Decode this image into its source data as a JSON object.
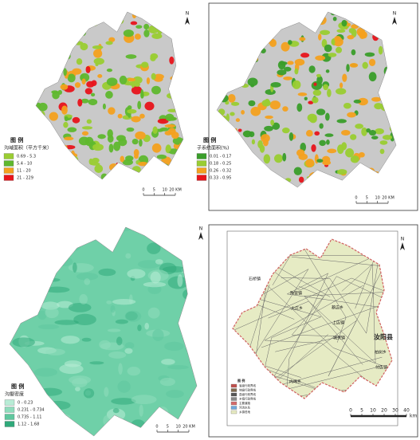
{
  "panels": [
    {
      "north": "N",
      "legend_title": "图  例",
      "legend_subtitle": "沟域面积（平方千米）",
      "legend_items": [
        {
          "label": "0.69 - 5.3",
          "color": "#9acd32"
        },
        {
          "label": "5.4 - 10",
          "color": "#5fb82e"
        },
        {
          "label": "11 - 20",
          "color": "#f4a11f"
        },
        {
          "label": "21 - 229",
          "color": "#e8141b"
        }
      ],
      "scale_labels": [
        "0",
        "5",
        "10",
        "20 KM"
      ]
    },
    {
      "north": "N",
      "legend_title": "图  例",
      "legend_subtitle": "子系统面积(%)",
      "legend_items": [
        {
          "label": "0.01 - 0.17",
          "color": "#3a9e2a"
        },
        {
          "label": "0.18 - 0.25",
          "color": "#9acd32"
        },
        {
          "label": "0.26 - 0.32",
          "color": "#f4a11f"
        },
        {
          "label": "0.33 - 0.95",
          "color": "#e8141b"
        }
      ],
      "scale_labels": [
        "0",
        "5",
        "10",
        "20 KM"
      ]
    },
    {
      "north": "N",
      "legend_title": "图  例",
      "legend_subtitle": "沟壑密度",
      "legend_items": [
        {
          "label": "0 - 0.23",
          "color": "#b8ecd6"
        },
        {
          "label": "0.231 - 0.734",
          "color": "#8fdcbc"
        },
        {
          "label": "0.735 - 1.11",
          "color": "#5fc79e"
        },
        {
          "label": "1.12 - 1.68",
          "color": "#2fa97a"
        }
      ],
      "scale_labels": [
        "0",
        "5",
        "10",
        "20 KM"
      ]
    },
    {
      "north": "N",
      "legend_title": "图 例",
      "legend_items": [
        {
          "label": "省级行政界线",
          "color": "#c0504d"
        },
        {
          "label": "地级行政界线",
          "color": "#7f6a4f"
        },
        {
          "label": "县级行政界线",
          "color": "#555555"
        },
        {
          "label": "乡镇行政界线",
          "color": "#888888"
        },
        {
          "label": "主要道路",
          "color": "#d46a6a"
        },
        {
          "label": "河流水系",
          "color": "#6fa8dc"
        },
        {
          "label": "乡镇驻地",
          "color": "#e7ebc2"
        }
      ],
      "scale_labels": [
        "0",
        "5",
        "10",
        "20",
        "30",
        "40"
      ],
      "scale_unit": "km",
      "place_names": [
        "石桥镇",
        "大庄乡",
        "城关镇",
        "付店镇",
        "陶营镇",
        "上店镇",
        "柏树乡",
        "内埠乡",
        "蔡店乡",
        "汝阳县"
      ]
    }
  ]
}
